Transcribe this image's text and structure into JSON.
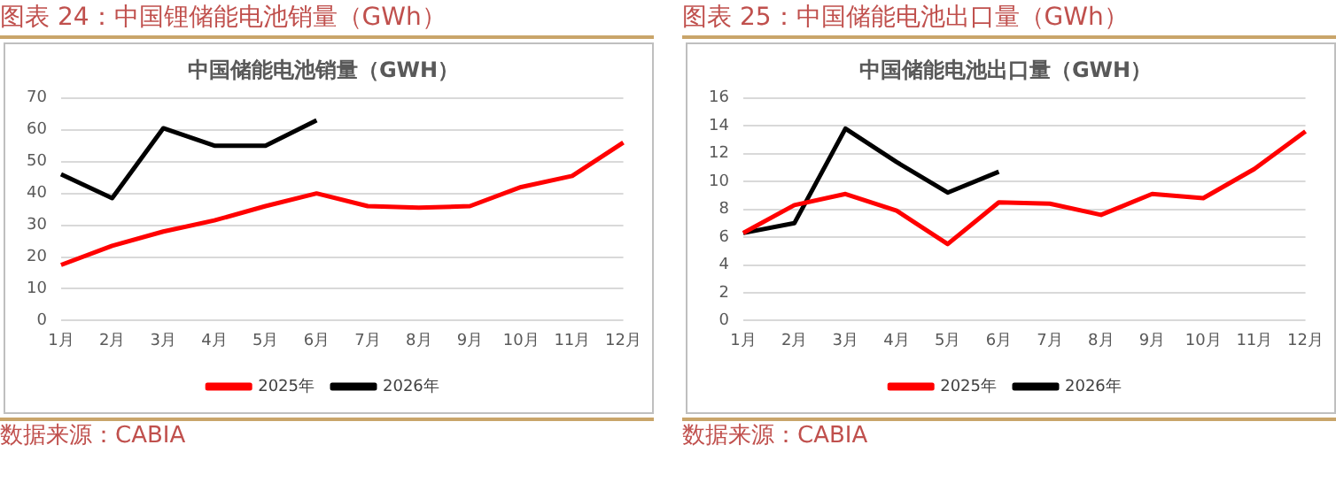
{
  "chart_data": [
    {
      "type": "line",
      "title": "图表 24：中国锂储能电池销量（GWh）",
      "subtitle": "中国储能电池销量（GWH）",
      "categories": [
        "1月",
        "2月",
        "3月",
        "4月",
        "5月",
        "6月",
        "7月",
        "8月",
        "9月",
        "10月",
        "11月",
        "12月"
      ],
      "series": [
        {
          "name": "2025年",
          "color": "#ff0000",
          "values": [
            17.5,
            23.5,
            28,
            31.5,
            36,
            40,
            36,
            35.5,
            36,
            42,
            45.5,
            56
          ]
        },
        {
          "name": "2026年",
          "color": "#000000",
          "values": [
            46,
            38.5,
            60.5,
            55,
            55,
            63,
            null,
            null,
            null,
            null,
            null,
            null
          ]
        }
      ],
      "ylim": [
        0,
        70
      ],
      "yticks": [
        0,
        10,
        20,
        30,
        40,
        50,
        60,
        70
      ],
      "grid": "y",
      "legend": "bottom",
      "marker": "none",
      "annotations": [
        "数据来源：CABIA"
      ]
    },
    {
      "type": "line",
      "title": "图表 25：中国储能电池出口量（GWh）",
      "subtitle": "中国储能电池出口量（GWH）",
      "categories": [
        "1月",
        "2月",
        "3月",
        "4月",
        "5月",
        "6月",
        "7月",
        "8月",
        "9月",
        "10月",
        "11月",
        "12月"
      ],
      "series": [
        {
          "name": "2025年",
          "color": "#ff0000",
          "values": [
            6.3,
            8.3,
            9.1,
            7.9,
            5.5,
            8.5,
            8.4,
            7.6,
            9.1,
            8.8,
            10.9,
            13.6
          ]
        },
        {
          "name": "2026年",
          "color": "#000000",
          "values": [
            6.3,
            7.0,
            13.8,
            11.4,
            9.2,
            10.7,
            null,
            null,
            null,
            null,
            null,
            null
          ]
        }
      ],
      "ylim": [
        0,
        16
      ],
      "yticks": [
        0,
        2,
        4,
        6,
        8,
        10,
        12,
        14,
        16
      ],
      "grid": "y",
      "legend": "bottom",
      "marker": "none",
      "annotations": [
        "数据来源：CABIA"
      ]
    }
  ]
}
